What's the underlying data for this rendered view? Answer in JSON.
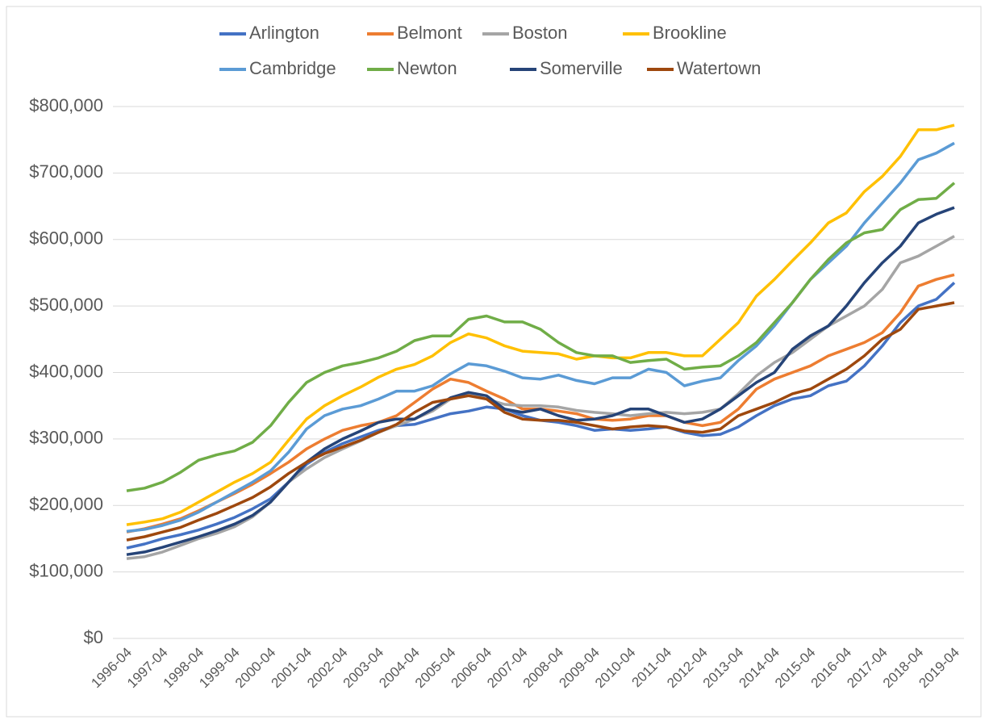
{
  "chart_data": {
    "type": "line",
    "categories": [
      "1996-04",
      null,
      "1997-04",
      null,
      "1998-04",
      null,
      "1999-04",
      null,
      "2000-04",
      null,
      "2001-04",
      null,
      "2002-04",
      null,
      "2003-04",
      null,
      "2004-04",
      null,
      "2005-04",
      null,
      "2006-04",
      null,
      "2007-04",
      null,
      "2008-04",
      null,
      "2009-04",
      null,
      "2010-04",
      null,
      "2011-04",
      null,
      "2012-04",
      null,
      "2013-04",
      null,
      "2014-04",
      null,
      "2015-04",
      null,
      "2016-04",
      null,
      "2017-04",
      null,
      "2018-04",
      null,
      "2019-04"
    ],
    "series": [
      {
        "name": "Arlington",
        "color": "#4472c4",
        "values": [
          136000,
          142000,
          150000,
          156000,
          163000,
          172000,
          182000,
          195000,
          210000,
          235000,
          262000,
          280000,
          293000,
          303000,
          313000,
          320000,
          322000,
          330000,
          338000,
          342000,
          348000,
          345000,
          335000,
          328000,
          325000,
          320000,
          313000,
          315000,
          313000,
          315000,
          318000,
          310000,
          305000,
          307000,
          318000,
          335000,
          350000,
          360000,
          365000,
          380000,
          387000,
          410000,
          440000,
          475000,
          500000,
          510000,
          535000
        ]
      },
      {
        "name": "Belmont",
        "color": "#ed7d31",
        "values": [
          160000,
          165000,
          172000,
          180000,
          192000,
          205000,
          218000,
          232000,
          248000,
          265000,
          285000,
          300000,
          313000,
          320000,
          325000,
          335000,
          355000,
          375000,
          390000,
          385000,
          372000,
          360000,
          345000,
          345000,
          342000,
          338000,
          330000,
          328000,
          330000,
          335000,
          335000,
          325000,
          320000,
          325000,
          345000,
          375000,
          390000,
          400000,
          410000,
          425000,
          435000,
          445000,
          460000,
          490000,
          530000,
          540000,
          547000
        ]
      },
      {
        "name": "Boston",
        "color": "#a5a5a5",
        "values": [
          120000,
          123000,
          130000,
          140000,
          150000,
          158000,
          168000,
          183000,
          205000,
          235000,
          255000,
          272000,
          285000,
          297000,
          310000,
          320000,
          330000,
          342000,
          360000,
          368000,
          360000,
          352000,
          350000,
          350000,
          348000,
          343000,
          340000,
          338000,
          335000,
          338000,
          340000,
          338000,
          340000,
          345000,
          368000,
          395000,
          415000,
          430000,
          450000,
          470000,
          485000,
          500000,
          525000,
          565000,
          575000,
          590000,
          605000
        ]
      },
      {
        "name": "Brookline",
        "color": "#ffc000",
        "values": [
          171000,
          175000,
          180000,
          190000,
          205000,
          220000,
          235000,
          248000,
          265000,
          298000,
          330000,
          350000,
          365000,
          378000,
          393000,
          405000,
          412000,
          425000,
          445000,
          458000,
          452000,
          440000,
          432000,
          430000,
          428000,
          420000,
          425000,
          422000,
          422000,
          430000,
          430000,
          425000,
          425000,
          450000,
          475000,
          515000,
          540000,
          568000,
          595000,
          625000,
          640000,
          672000,
          695000,
          725000,
          765000,
          765000,
          772000
        ]
      },
      {
        "name": "Cambridge",
        "color": "#5b9bd5",
        "values": [
          161000,
          164000,
          170000,
          178000,
          190000,
          205000,
          220000,
          235000,
          252000,
          280000,
          315000,
          335000,
          345000,
          350000,
          360000,
          372000,
          372000,
          380000,
          398000,
          413000,
          410000,
          402000,
          392000,
          390000,
          396000,
          388000,
          383000,
          392000,
          392000,
          405000,
          400000,
          380000,
          387000,
          392000,
          418000,
          440000,
          470000,
          505000,
          540000,
          565000,
          590000,
          625000,
          655000,
          685000,
          720000,
          730000,
          745000
        ]
      },
      {
        "name": "Newton",
        "color": "#70ad47",
        "values": [
          222000,
          226000,
          235000,
          250000,
          268000,
          276000,
          282000,
          295000,
          320000,
          355000,
          385000,
          400000,
          410000,
          415000,
          422000,
          432000,
          448000,
          455000,
          455000,
          480000,
          485000,
          476000,
          476000,
          465000,
          445000,
          430000,
          425000,
          425000,
          415000,
          418000,
          420000,
          405000,
          408000,
          410000,
          425000,
          445000,
          475000,
          505000,
          540000,
          570000,
          595000,
          610000,
          615000,
          645000,
          660000,
          662000,
          685000
        ]
      },
      {
        "name": "Somerville",
        "color": "#264478",
        "values": [
          126000,
          130000,
          137000,
          145000,
          153000,
          162000,
          172000,
          185000,
          205000,
          235000,
          265000,
          285000,
          300000,
          312000,
          325000,
          330000,
          330000,
          345000,
          362000,
          370000,
          365000,
          345000,
          340000,
          345000,
          335000,
          328000,
          330000,
          335000,
          345000,
          345000,
          335000,
          325000,
          330000,
          345000,
          365000,
          385000,
          400000,
          435000,
          455000,
          470000,
          500000,
          535000,
          565000,
          590000,
          625000,
          638000,
          648000
        ]
      },
      {
        "name": "Watertown",
        "color": "#9e480e",
        "values": [
          148000,
          153000,
          160000,
          167000,
          178000,
          188000,
          200000,
          212000,
          228000,
          248000,
          265000,
          278000,
          288000,
          298000,
          310000,
          322000,
          340000,
          355000,
          360000,
          365000,
          360000,
          340000,
          330000,
          328000,
          328000,
          325000,
          320000,
          315000,
          318000,
          320000,
          318000,
          312000,
          310000,
          315000,
          335000,
          345000,
          355000,
          368000,
          375000,
          390000,
          405000,
          425000,
          450000,
          465000,
          495000,
          500000,
          505000
        ]
      }
    ],
    "ylim": [
      0,
      800000
    ],
    "yticks": [
      {
        "value": 0,
        "label": "$0"
      },
      {
        "value": 100000,
        "label": "$100,000"
      },
      {
        "value": 200000,
        "label": "$200,000"
      },
      {
        "value": 300000,
        "label": "$300,000"
      },
      {
        "value": 400000,
        "label": "$400,000"
      },
      {
        "value": 500000,
        "label": "$500,000"
      },
      {
        "value": 600000,
        "label": "$600,000"
      },
      {
        "value": 700000,
        "label": "$700,000"
      },
      {
        "value": 800000,
        "label": "$800,000"
      }
    ],
    "grid": true,
    "legend": "top"
  }
}
